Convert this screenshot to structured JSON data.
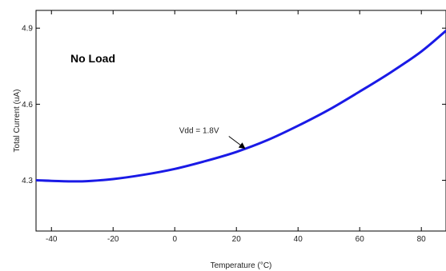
{
  "chart_data": {
    "type": "line",
    "title": "",
    "xlabel": "Temperature (°C)",
    "ylabel": "Total Current (uA)",
    "xlim": [
      -45,
      88
    ],
    "ylim": [
      4.1,
      4.97
    ],
    "x_ticks": [
      -40,
      -20,
      0,
      20,
      40,
      60,
      80
    ],
    "y_ticks": [
      4.3,
      4.6,
      4.9
    ],
    "x_tick_labels": [
      "-40",
      "-20",
      "0",
      "20",
      "40",
      "60",
      "80"
    ],
    "y_tick_labels": [
      "4.3",
      "4.6",
      "4.9"
    ],
    "grid": false,
    "inset_title": "No Load",
    "series": [
      {
        "name": "Vdd = 1.8V",
        "color": "#1a1ae6",
        "x": [
          -45,
          -40,
          -30,
          -20,
          -10,
          0,
          10,
          20,
          30,
          40,
          50,
          60,
          70,
          80,
          88
        ],
        "y": [
          4.3,
          4.298,
          4.296,
          4.305,
          4.322,
          4.345,
          4.376,
          4.412,
          4.458,
          4.515,
          4.578,
          4.65,
          4.725,
          4.808,
          4.89
        ]
      }
    ],
    "annotations": [
      {
        "text": "Vdd = 1.8V",
        "x": 23,
        "y": 4.423
      }
    ]
  }
}
